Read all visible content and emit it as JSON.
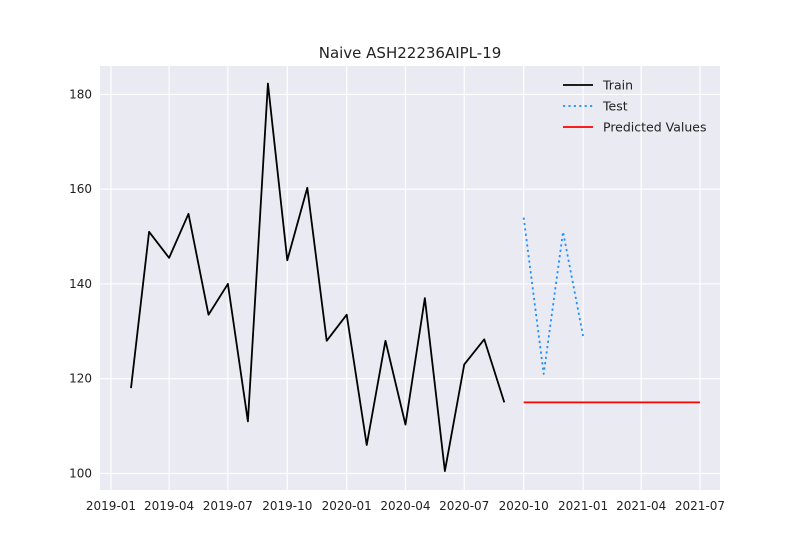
{
  "chart_data": {
    "type": "line",
    "title": "Naive ASH22236AIPL-19",
    "xlabel": "",
    "ylabel": "",
    "x_axis": "date",
    "xlim": [
      "2018-12-15",
      "2021-08-01"
    ],
    "ylim": [
      96.5,
      186
    ],
    "x_ticks": [
      "2019-01-01",
      "2019-04-01",
      "2019-07-01",
      "2019-10-01",
      "2020-01-01",
      "2020-04-01",
      "2020-07-01",
      "2020-10-01",
      "2021-01-01",
      "2021-04-01",
      "2021-07-01"
    ],
    "x_tick_labels": [
      "2019-01",
      "2019-04",
      "2019-07",
      "2019-10",
      "2020-01",
      "2020-04",
      "2020-07",
      "2020-10",
      "2021-01",
      "2021-04",
      "2021-07"
    ],
    "y_ticks": [
      100,
      120,
      140,
      160,
      180
    ],
    "y_tick_labels": [
      "100",
      "120",
      "140",
      "160",
      "180"
    ],
    "grid": true,
    "background": "#eaeaf2",
    "legend_position": "top-right",
    "series": [
      {
        "name": "Train",
        "color": "#000000",
        "style": "solid",
        "x": [
          "2019-02-01",
          "2019-03-01",
          "2019-04-01",
          "2019-05-01",
          "2019-06-01",
          "2019-07-01",
          "2019-08-01",
          "2019-09-01",
          "2019-10-01",
          "2019-11-01",
          "2019-12-01",
          "2020-01-01",
          "2020-02-01",
          "2020-03-01",
          "2020-04-01",
          "2020-05-01",
          "2020-06-01",
          "2020-07-01",
          "2020-08-01",
          "2020-09-01"
        ],
        "y": [
          118,
          151,
          145.5,
          154.8,
          133.5,
          140,
          111,
          182.3,
          145,
          160.3,
          128,
          133.5,
          106,
          128,
          110.3,
          137,
          100.5,
          123,
          128.3,
          115
        ]
      },
      {
        "name": "Test",
        "color": "#1e90ff",
        "style": "dotted",
        "x": [
          "2020-10-01",
          "2020-11-01",
          "2020-12-01",
          "2021-01-01"
        ],
        "y": [
          154,
          121,
          151,
          129
        ]
      },
      {
        "name": "Predicted Values",
        "color": "#ff0000",
        "style": "solid",
        "x": [
          "2020-10-01",
          "2021-07-01"
        ],
        "y": [
          115,
          115
        ]
      }
    ]
  }
}
